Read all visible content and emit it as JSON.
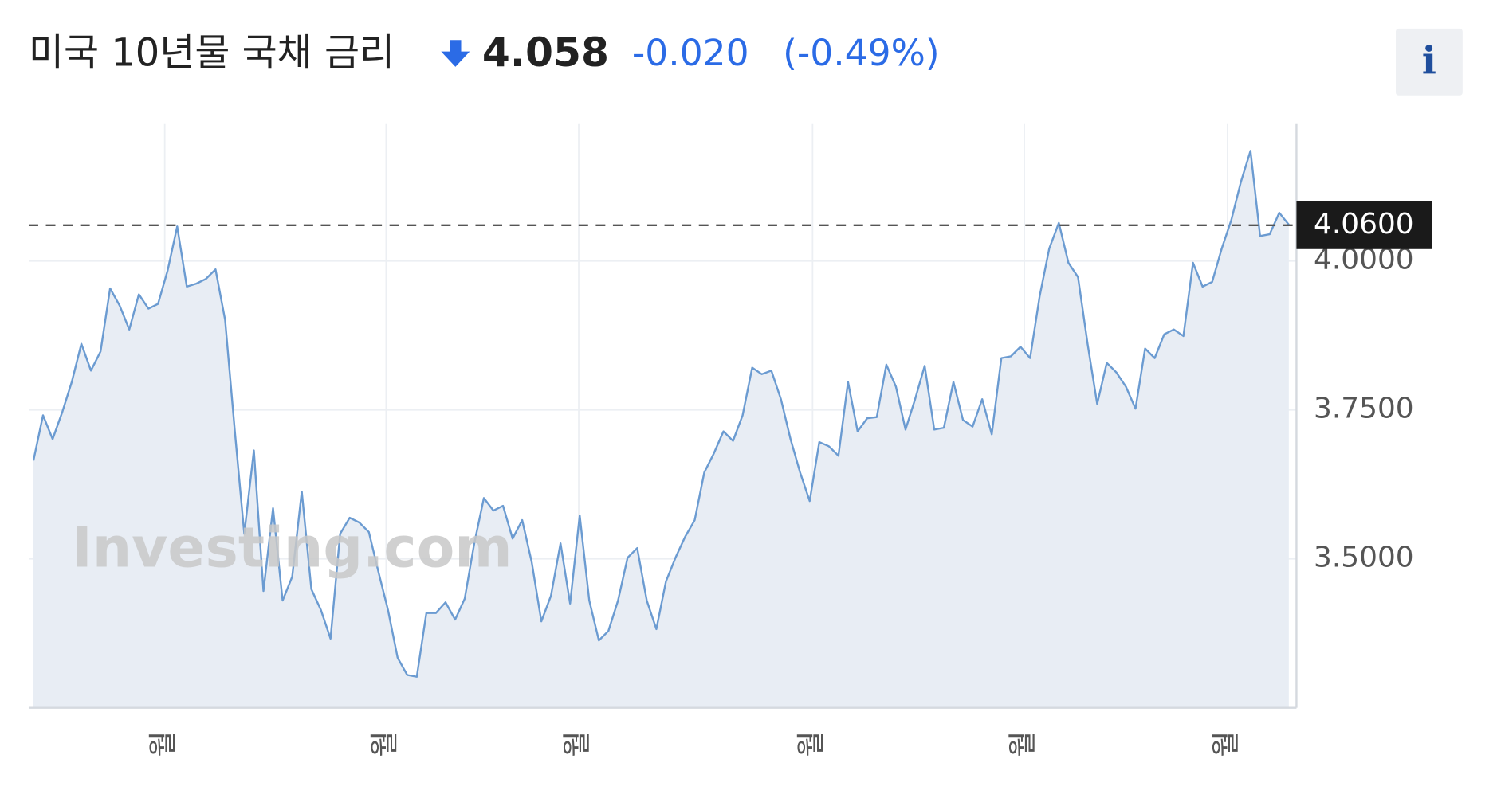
{
  "chart_data": {
    "type": "area",
    "title": "미국 10년물 국채 금리",
    "last_price": "4.058",
    "change": "-0.020",
    "change_percent": "(-0.49%)",
    "info_button": "i",
    "watermark": "Investing.com",
    "color": "#6b9bd1",
    "fill_color": "#e8edf4",
    "grid": true,
    "x": [
      0,
      1,
      2,
      3,
      4,
      5,
      6,
      7,
      8,
      9,
      10,
      11,
      12,
      13,
      14,
      15,
      16,
      17,
      18,
      19,
      20,
      21,
      22,
      23,
      24,
      25,
      26,
      27,
      28,
      29,
      30,
      31,
      32,
      33,
      34,
      35,
      36,
      37,
      38,
      39,
      40,
      41,
      42,
      43,
      44,
      45,
      46,
      47,
      48,
      49,
      50,
      51,
      52,
      53,
      54,
      55,
      56,
      57,
      58,
      59,
      60,
      61,
      62,
      63,
      64,
      65,
      66,
      67,
      68,
      69,
      70,
      71,
      72,
      73,
      74,
      75,
      76,
      77,
      78,
      79,
      80,
      81,
      82,
      83,
      84,
      85,
      86,
      87,
      88,
      89,
      90,
      91,
      92,
      93,
      94,
      95,
      96,
      97,
      98,
      99,
      100,
      101,
      102,
      103,
      104,
      105,
      106,
      107,
      108,
      109,
      110,
      111,
      112,
      113,
      114,
      115,
      116,
      117,
      118,
      119,
      120,
      121,
      122,
      123,
      124,
      125,
      126,
      127,
      128,
      129,
      130,
      131
    ],
    "values": [
      3.665,
      3.741,
      3.701,
      3.746,
      3.797,
      3.861,
      3.816,
      3.848,
      3.954,
      3.925,
      3.885,
      3.944,
      3.92,
      3.928,
      3.984,
      4.058,
      3.957,
      3.962,
      3.97,
      3.986,
      3.901,
      3.717,
      3.542,
      3.682,
      3.446,
      3.585,
      3.43,
      3.47,
      3.613,
      3.449,
      3.414,
      3.366,
      3.542,
      3.569,
      3.561,
      3.545,
      3.478,
      3.414,
      3.334,
      3.305,
      3.302,
      3.409,
      3.409,
      3.427,
      3.398,
      3.433,
      3.526,
      3.602,
      3.581,
      3.589,
      3.534,
      3.565,
      3.494,
      3.395,
      3.438,
      3.526,
      3.425,
      3.573,
      3.43,
      3.363,
      3.379,
      3.43,
      3.502,
      3.518,
      3.43,
      3.382,
      3.462,
      3.502,
      3.537,
      3.565,
      3.645,
      3.677,
      3.714,
      3.698,
      3.741,
      3.821,
      3.81,
      3.816,
      3.768,
      3.701,
      3.645,
      3.597,
      3.696,
      3.689,
      3.673,
      3.797,
      3.714,
      3.736,
      3.738,
      3.826,
      3.789,
      3.717,
      3.768,
      3.824,
      3.717,
      3.72,
      3.797,
      3.733,
      3.722,
      3.768,
      3.709,
      3.837,
      3.84,
      3.856,
      3.837,
      3.941,
      4.021,
      4.064,
      3.997,
      3.973,
      3.861,
      3.76,
      3.829,
      3.813,
      3.789,
      3.752,
      3.853,
      3.837,
      3.877,
      3.885,
      3.874,
      3.997,
      3.957,
      3.965,
      4.021,
      4.069,
      4.133,
      4.185,
      4.042,
      4.045,
      4.081,
      4.061
    ],
    "xlim": [
      0,
      131
    ],
    "xticks": [
      {
        "value": 13.7,
        "label": "월"
      },
      {
        "value": 36.8,
        "label": "월"
      },
      {
        "value": 56.9,
        "label": "월"
      },
      {
        "value": 81.3,
        "label": "월"
      },
      {
        "value": 103.4,
        "label": "월"
      },
      {
        "value": 124.6,
        "label": "월"
      }
    ],
    "ylim": [
      3.25,
      4.23
    ],
    "yticks": [
      {
        "value": 3.5,
        "label": "3.5000"
      },
      {
        "value": 3.75,
        "label": "3.7500"
      },
      {
        "value": 4.0,
        "label": "4.0000"
      }
    ],
    "current_marker": {
      "value": 4.06,
      "label": "4.0600"
    }
  }
}
